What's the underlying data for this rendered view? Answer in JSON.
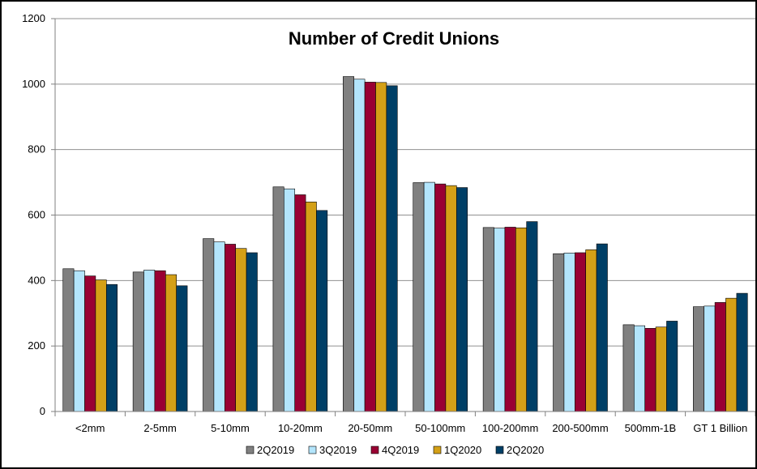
{
  "chart_data": {
    "type": "bar",
    "title": "Number of Credit Unions",
    "xlabel": "",
    "ylabel": "",
    "ylim": [
      0,
      1200
    ],
    "yticks": [
      0,
      200,
      400,
      600,
      800,
      1000,
      1200
    ],
    "grid": true,
    "legend_position": "bottom",
    "categories": [
      "<2mm",
      "2-5mm",
      "5-10mm",
      "10-20mm",
      "20-50mm",
      "50-100mm",
      "100-200mm",
      "200-500mm",
      "500mm-1B",
      "GT 1 Billion"
    ],
    "series": [
      {
        "name": "2Q2019",
        "color": "#808080",
        "values": [
          436,
          426,
          528,
          686,
          1023,
          699,
          562,
          482,
          265,
          320
        ]
      },
      {
        "name": "3Q2019",
        "color": "#B3E5FC",
        "values": [
          430,
          432,
          518,
          680,
          1015,
          700,
          560,
          484,
          262,
          322
        ]
      },
      {
        "name": "4Q2019",
        "color": "#990033",
        "values": [
          414,
          430,
          511,
          662,
          1006,
          695,
          563,
          485,
          254,
          333
        ]
      },
      {
        "name": "1Q2020",
        "color": "#D4A017",
        "values": [
          402,
          418,
          498,
          640,
          1005,
          690,
          561,
          494,
          258,
          346
        ]
      },
      {
        "name": "2Q2020",
        "color": "#003F66",
        "values": [
          388,
          384,
          485,
          614,
          995,
          684,
          580,
          512,
          276,
          361
        ]
      }
    ]
  }
}
